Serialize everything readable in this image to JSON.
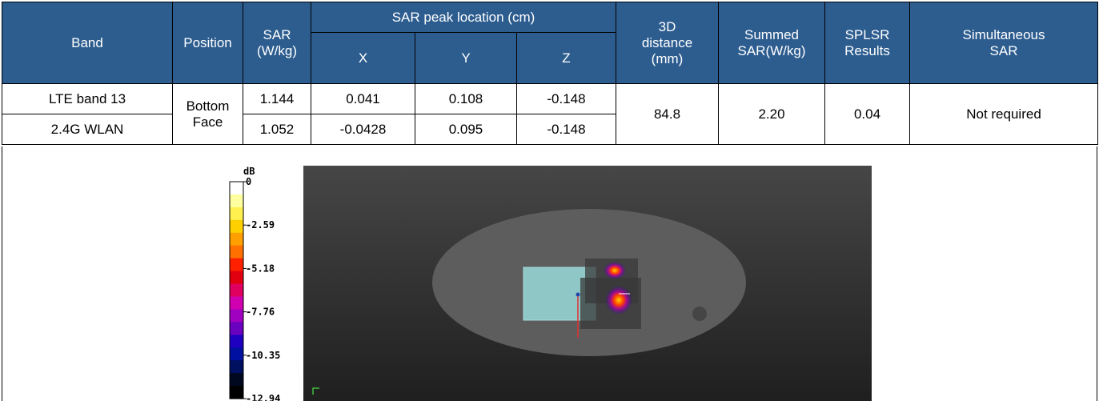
{
  "headers": {
    "band": "Band",
    "position": "Position",
    "sar": "SAR (W/kg)",
    "peak_location": "SAR peak location (cm)",
    "x": "X",
    "y": "Y",
    "z": "Z",
    "distance_3d": "3D distance (mm)",
    "summed_sar": "Summed SAR(W/kg)",
    "splsr": "SPLSR Results",
    "simultaneous": "Simultaneous SAR"
  },
  "rows": [
    {
      "band": "LTE band 13",
      "sar": "1.144",
      "x": "0.041",
      "y": "0.108",
      "z": "-0.148"
    },
    {
      "band": "2.4G WLAN",
      "sar": "1.052",
      "x": "-0.0428",
      "y": "0.095",
      "z": "-0.148"
    }
  ],
  "merged": {
    "position": "Bottom Face",
    "distance_3d": "84.8",
    "summed_sar": "2.20",
    "splsr": "0.04",
    "simultaneous": "Not required"
  },
  "colorbar": {
    "unit": "dB",
    "ticks": [
      "0",
      "-2.59",
      "-5.18",
      "-7.76",
      "-10.35",
      "-12.94"
    ],
    "colors": [
      "#ffffff",
      "#ffffa0",
      "#fff050",
      "#ffd000",
      "#ffa000",
      "#ff7000",
      "#ff2000",
      "#e00010",
      "#e00060",
      "#d000b0",
      "#a000c0",
      "#6a00c0",
      "#2000c0",
      "#0010a0",
      "#001060",
      "#000820",
      "#000000"
    ]
  }
}
